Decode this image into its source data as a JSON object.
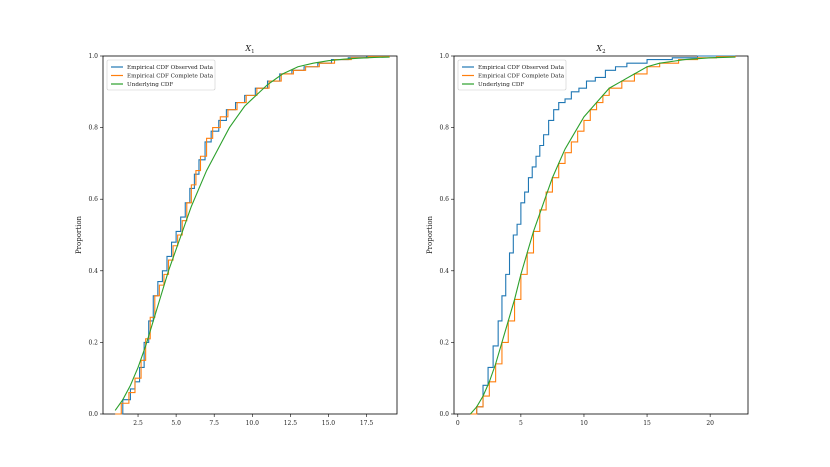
{
  "chart_data": [
    {
      "type": "line",
      "title": "X_1",
      "title_main": "X",
      "title_sub": "1",
      "ylabel": "Proportion",
      "xlim": [
        0.2,
        19.5
      ],
      "ylim": [
        0.0,
        1.0
      ],
      "xticks": [
        2.5,
        5.0,
        7.5,
        10.0,
        12.5,
        15.0,
        17.5
      ],
      "xtick_labels": [
        "2.5",
        "5.0",
        "7.5",
        "10.0",
        "12.5",
        "15.0",
        "17.5"
      ],
      "yticks": [
        0.0,
        0.2,
        0.4,
        0.6,
        0.8,
        1.0
      ],
      "ytick_labels": [
        "0.0",
        "0.2",
        "0.4",
        "0.6",
        "0.8",
        "1.0"
      ],
      "grid": false,
      "legend_position": "upper-left",
      "series": [
        {
          "name": "Empirical CDF Observed Data",
          "color": "#1f77b4",
          "step": true,
          "x": [
            1.0,
            1.5,
            2.0,
            2.3,
            2.6,
            2.9,
            3.2,
            3.5,
            3.8,
            4.1,
            4.4,
            4.7,
            5.0,
            5.3,
            5.6,
            5.9,
            6.2,
            6.5,
            6.9,
            7.3,
            7.8,
            8.3,
            8.9,
            9.5,
            10.2,
            11.0,
            11.8,
            12.6,
            13.4,
            14.3,
            15.2,
            16.3,
            17.5,
            19.0
          ],
          "y": [
            0.0,
            0.04,
            0.07,
            0.09,
            0.13,
            0.2,
            0.26,
            0.33,
            0.37,
            0.4,
            0.44,
            0.48,
            0.51,
            0.55,
            0.59,
            0.63,
            0.67,
            0.71,
            0.76,
            0.79,
            0.82,
            0.85,
            0.87,
            0.89,
            0.91,
            0.93,
            0.95,
            0.96,
            0.97,
            0.98,
            0.99,
            0.995,
            0.998,
            1.0
          ]
        },
        {
          "name": "Empirical CDF Complete Data",
          "color": "#ff7f0e",
          "step": true,
          "x": [
            1.0,
            1.4,
            1.9,
            2.3,
            2.7,
            3.0,
            3.3,
            3.6,
            3.9,
            4.2,
            4.5,
            4.8,
            5.1,
            5.4,
            5.7,
            6.0,
            6.3,
            6.6,
            7.0,
            7.4,
            7.9,
            8.4,
            9.0,
            9.6,
            10.3,
            11.1,
            11.9,
            12.7,
            13.5,
            14.4,
            15.4,
            16.5,
            17.6,
            19.0
          ],
          "y": [
            0.0,
            0.03,
            0.06,
            0.1,
            0.15,
            0.21,
            0.27,
            0.33,
            0.36,
            0.39,
            0.43,
            0.47,
            0.5,
            0.54,
            0.59,
            0.64,
            0.68,
            0.72,
            0.77,
            0.8,
            0.83,
            0.85,
            0.87,
            0.89,
            0.91,
            0.93,
            0.95,
            0.96,
            0.97,
            0.98,
            0.99,
            0.995,
            0.998,
            1.0
          ]
        },
        {
          "name": "Underlying CDF",
          "color": "#2ca02c",
          "step": false,
          "x": [
            1.0,
            1.5,
            2.0,
            2.5,
            3.0,
            3.5,
            4.0,
            4.5,
            5.0,
            5.5,
            6.0,
            6.5,
            7.0,
            7.5,
            8.0,
            8.5,
            9.0,
            9.5,
            10.0,
            11.0,
            12.0,
            13.0,
            14.0,
            15.0,
            16.0,
            17.0,
            18.0,
            19.0
          ],
          "y": [
            0.01,
            0.04,
            0.08,
            0.13,
            0.19,
            0.26,
            0.33,
            0.4,
            0.46,
            0.52,
            0.58,
            0.63,
            0.68,
            0.72,
            0.76,
            0.8,
            0.83,
            0.86,
            0.88,
            0.92,
            0.95,
            0.97,
            0.98,
            0.987,
            0.991,
            0.994,
            0.996,
            0.997
          ]
        }
      ]
    },
    {
      "type": "line",
      "title": "X_2",
      "title_main": "X",
      "title_sub": "2",
      "ylabel": "Proportion",
      "xlim": [
        -0.3,
        23.0
      ],
      "ylim": [
        0.0,
        1.0
      ],
      "xticks": [
        0,
        5,
        10,
        15,
        20
      ],
      "xtick_labels": [
        "0",
        "5",
        "10",
        "15",
        "20"
      ],
      "yticks": [
        0.0,
        0.2,
        0.4,
        0.6,
        0.8,
        1.0
      ],
      "ytick_labels": [
        "0.0",
        "0.2",
        "0.4",
        "0.6",
        "0.8",
        "1.0"
      ],
      "grid": false,
      "legend_position": "upper-left",
      "series": [
        {
          "name": "Empirical CDF Observed Data",
          "color": "#1f77b4",
          "step": true,
          "x": [
            1.0,
            1.5,
            2.0,
            2.4,
            2.8,
            3.2,
            3.5,
            3.8,
            4.1,
            4.4,
            4.7,
            5.0,
            5.3,
            5.6,
            5.9,
            6.2,
            6.5,
            6.8,
            7.2,
            7.6,
            8.0,
            8.5,
            9.0,
            9.6,
            10.2,
            10.9,
            11.7,
            12.5,
            13.4,
            15.0,
            17.0,
            19.0,
            22.0
          ],
          "y": [
            0.0,
            0.02,
            0.08,
            0.13,
            0.19,
            0.26,
            0.33,
            0.39,
            0.45,
            0.5,
            0.53,
            0.59,
            0.62,
            0.66,
            0.69,
            0.72,
            0.75,
            0.78,
            0.82,
            0.85,
            0.87,
            0.88,
            0.9,
            0.91,
            0.93,
            0.94,
            0.96,
            0.97,
            0.98,
            0.99,
            0.995,
            1.0,
            1.0
          ]
        },
        {
          "name": "Empirical CDF Complete Data",
          "color": "#ff7f0e",
          "step": true,
          "x": [
            1.0,
            1.5,
            2.0,
            2.5,
            3.0,
            3.5,
            4.0,
            4.5,
            5.0,
            5.5,
            6.0,
            6.5,
            7.0,
            7.5,
            8.0,
            8.5,
            9.0,
            9.5,
            10.0,
            10.5,
            11.0,
            11.5,
            12.0,
            13.0,
            14.0,
            15.0,
            16.0,
            17.5,
            19.0,
            20.5,
            22.0
          ],
          "y": [
            0.0,
            0.02,
            0.05,
            0.09,
            0.14,
            0.2,
            0.26,
            0.32,
            0.39,
            0.45,
            0.51,
            0.57,
            0.62,
            0.66,
            0.7,
            0.73,
            0.76,
            0.79,
            0.82,
            0.85,
            0.87,
            0.89,
            0.91,
            0.93,
            0.95,
            0.97,
            0.98,
            0.99,
            0.995,
            0.998,
            1.0
          ]
        },
        {
          "name": "Underlying CDF",
          "color": "#2ca02c",
          "step": false,
          "x": [
            1.0,
            1.5,
            2.0,
            2.5,
            3.0,
            3.5,
            4.0,
            4.5,
            5.0,
            5.5,
            6.0,
            6.5,
            7.0,
            7.5,
            8.0,
            8.5,
            9.0,
            10.0,
            11.0,
            12.0,
            13.0,
            14.0,
            15.0,
            16.0,
            17.0,
            18.0,
            20.0,
            22.0
          ],
          "y": [
            0.0,
            0.02,
            0.05,
            0.09,
            0.14,
            0.2,
            0.26,
            0.32,
            0.39,
            0.45,
            0.51,
            0.56,
            0.61,
            0.66,
            0.7,
            0.74,
            0.77,
            0.83,
            0.87,
            0.91,
            0.93,
            0.95,
            0.97,
            0.98,
            0.985,
            0.99,
            0.995,
            0.997
          ]
        }
      ]
    }
  ]
}
